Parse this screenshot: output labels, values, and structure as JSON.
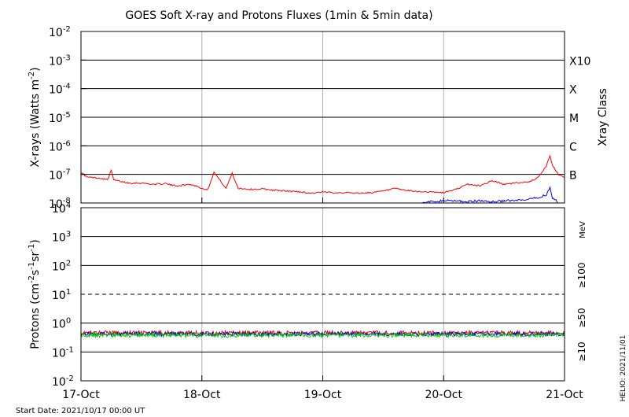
{
  "chart_data": [
    {
      "type": "line",
      "title": "GOES Soft X-ray and Protons Fluxes   (1min & 5min data)",
      "ylabel": "X-rays (Watts m",
      "ylabel_sup": "-2",
      "ylabel_close": ")",
      "y_scale": "log",
      "ylim": [
        1e-08,
        0.01
      ],
      "xlim": [
        "2021-10-17",
        "2021-10-21"
      ],
      "y_ticks": [
        {
          "value": 0.01,
          "base": "10",
          "exp": "-2"
        },
        {
          "value": 0.001,
          "base": "10",
          "exp": "-3"
        },
        {
          "value": 0.0001,
          "base": "10",
          "exp": "-4"
        },
        {
          "value": 1e-05,
          "base": "10",
          "exp": "-5"
        },
        {
          "value": 1e-06,
          "base": "10",
          "exp": "-6"
        },
        {
          "value": 1e-07,
          "base": "10",
          "exp": "-7"
        },
        {
          "value": 1e-08,
          "base": "10",
          "exp": "-8"
        }
      ],
      "right_axis_label": "Xray Class",
      "classes": [
        {
          "label": "X10",
          "value": 0.001
        },
        {
          "label": "X",
          "value": 0.0001
        },
        {
          "label": "M",
          "value": 1e-05
        },
        {
          "label": "C",
          "value": 1e-06
        },
        {
          "label": "B",
          "value": 1e-07
        }
      ],
      "colors": {
        "long": "#ff0000",
        "short": "#0000ff"
      },
      "series": [
        {
          "color": "#ff0000",
          "x": [
            0,
            0.05,
            0.15,
            0.22,
            0.25,
            0.27,
            0.3,
            0.4,
            0.5,
            0.6,
            0.7,
            0.75,
            0.8,
            0.9,
            0.95,
            1.0,
            1.05,
            1.1,
            1.2,
            1.25,
            1.3,
            1.4,
            1.5,
            1.6,
            1.7,
            1.8,
            1.9,
            2.0,
            2.1,
            2.2,
            2.3,
            2.4,
            2.5,
            2.6,
            2.7,
            2.8,
            2.9,
            3.0,
            3.1,
            3.2,
            3.3,
            3.4,
            3.5,
            3.6,
            3.7,
            3.75,
            3.8,
            3.85,
            3.88,
            3.9,
            3.95,
            4.0
          ],
          "y": [
            1.2e-07,
            8e-08,
            7.5e-08,
            6.5e-08,
            1.4e-07,
            6.5e-08,
            6e-08,
            5e-08,
            5e-08,
            4.5e-08,
            4.8e-08,
            4.2e-08,
            4e-08,
            4.5e-08,
            4e-08,
            3.2e-08,
            3e-08,
            1.2e-07,
            3.2e-08,
            1.1e-07,
            3.3e-08,
            3e-08,
            3.1e-08,
            2.8e-08,
            2.6e-08,
            2.5e-08,
            2.2e-08,
            2.4e-08,
            2.3e-08,
            2.3e-08,
            2.2e-08,
            2.3e-08,
            2.6e-08,
            3.2e-08,
            2.7e-08,
            2.5e-08,
            2.4e-08,
            2.3e-08,
            3e-08,
            4.5e-08,
            4e-08,
            6e-08,
            4.5e-08,
            5e-08,
            5.5e-08,
            6.5e-08,
            1e-07,
            2e-07,
            4.5e-07,
            2e-07,
            1e-07,
            8e-08
          ]
        },
        {
          "color": "#0000ff",
          "x": [
            2.8,
            2.9,
            3.0,
            3.1,
            3.2,
            3.3,
            3.4,
            3.5,
            3.6,
            3.7,
            3.8,
            3.85,
            3.88,
            3.9,
            3.93,
            3.95
          ],
          "y": [
            1e-08,
            1.1e-08,
            1.2e-08,
            1.2e-08,
            1.1e-08,
            1.2e-08,
            1.1e-08,
            1.2e-08,
            1.2e-08,
            1.3e-08,
            1.6e-08,
            2e-08,
            3.5e-08,
            1.5e-08,
            1.2e-08,
            1e-08
          ]
        }
      ]
    },
    {
      "type": "line",
      "ylabel": "Protons (cm",
      "y_scale": "log",
      "ylim": [
        0.01,
        10000
      ],
      "xlim": [
        "2021-10-17",
        "2021-10-21"
      ],
      "y_ticks": [
        {
          "value": 10000,
          "base": "10",
          "exp": "4"
        },
        {
          "value": 1000,
          "base": "10",
          "exp": "3"
        },
        {
          "value": 100,
          "base": "10",
          "exp": "2"
        },
        {
          "value": 10,
          "base": "10",
          "exp": "1"
        },
        {
          "value": 1,
          "base": "10",
          "exp": "0"
        },
        {
          "value": 0.1,
          "base": "10",
          "exp": "-1"
        },
        {
          "value": 0.01,
          "base": "10",
          "exp": "-2"
        }
      ],
      "threshold": 10,
      "right_unit": "MeV",
      "series": [
        {
          "name": "≥100",
          "color": "#00cc00",
          "level": 0.38
        },
        {
          "name": "≥50",
          "color": "#0000cc",
          "level": 0.42
        },
        {
          "name": "≥10",
          "color": "#dd0000",
          "level": 0.46
        }
      ]
    }
  ],
  "x_tick_labels": [
    "17-Oct",
    "18-Oct",
    "19-Oct",
    "20-Oct",
    "21-Oct"
  ],
  "footer": {
    "start": "Start Date: 2021/10/17 00:00 UT",
    "stamp": "HELIO: 2021/11/01"
  }
}
